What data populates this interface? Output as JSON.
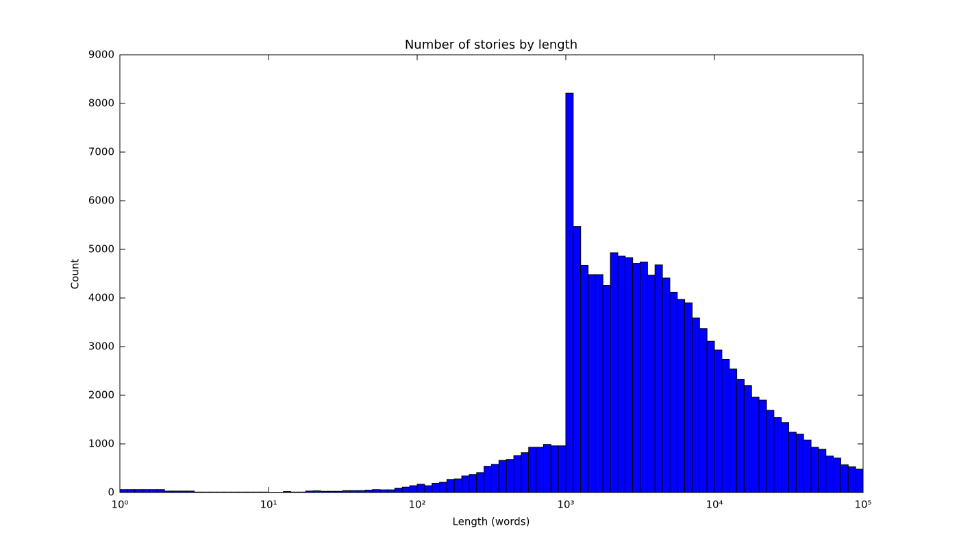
{
  "chart_data": {
    "type": "histogram",
    "title": "Number of stories by length",
    "xlabel": "Length (words)",
    "ylabel": "Count",
    "color": "#0000ff",
    "xscale": "log",
    "bins": [
      1,
      1.122,
      1.259,
      1.413,
      1.585,
      1.778,
      1.995,
      2.239,
      2.512,
      2.818,
      3.162,
      3.548,
      3.981,
      4.467,
      5.012,
      5.623,
      6.31,
      7.079,
      7.943,
      8.913,
      10,
      11.22,
      12.59,
      14.13,
      15.85,
      17.78,
      19.95,
      22.39,
      25.12,
      28.18,
      31.62,
      35.48,
      39.81,
      44.67,
      50.12,
      56.23,
      63.1,
      70.79,
      79.43,
      89.13,
      100,
      112.2,
      125.9,
      141.3,
      158.5,
      177.8,
      199.5,
      223.9,
      251.2,
      281.8,
      316.2,
      354.8,
      398.1,
      446.7,
      501.2,
      562.3,
      631,
      707.9,
      794.3,
      891.3,
      1000,
      1122,
      1259,
      1413,
      1585,
      1778,
      1995,
      2239,
      2512,
      2818,
      3162,
      3548,
      3981,
      4467,
      5012,
      5623,
      6310,
      7079,
      7943,
      8913,
      10000,
      11220,
      12590,
      14130,
      15850,
      17780,
      19950,
      22390,
      25120,
      28180,
      31620,
      35480,
      39810,
      44670,
      50120,
      56230,
      63100,
      70790,
      79430,
      89130,
      100000
    ],
    "values": [
      60,
      60,
      60,
      60,
      60,
      60,
      30,
      30,
      30,
      30,
      10,
      10,
      10,
      10,
      10,
      10,
      10,
      10,
      10,
      10,
      5,
      5,
      20,
      10,
      10,
      30,
      35,
      25,
      25,
      25,
      40,
      40,
      40,
      50,
      60,
      55,
      55,
      90,
      110,
      140,
      170,
      140,
      190,
      210,
      270,
      280,
      340,
      370,
      410,
      540,
      580,
      660,
      680,
      760,
      820,
      930,
      930,
      990,
      960,
      960,
      8210,
      5470,
      4670,
      4480,
      4480,
      4260,
      4930,
      4860,
      4830,
      4710,
      4740,
      4470,
      4680,
      4410,
      4120,
      3970,
      3900,
      3590,
      3370,
      3110,
      2930,
      2740,
      2540,
      2330,
      2200,
      1960,
      1900,
      1690,
      1540,
      1440,
      1240,
      1200,
      1080,
      930,
      890,
      750,
      710,
      570,
      530,
      480
    ],
    "xlim": [
      1,
      100000
    ],
    "xticks": [
      {
        "value": 1,
        "label": "10⁰"
      },
      {
        "value": 10,
        "label": "10¹"
      },
      {
        "value": 100,
        "label": "10²"
      },
      {
        "value": 1000,
        "label": "10³"
      },
      {
        "value": 10000,
        "label": "10⁴"
      },
      {
        "value": 100000,
        "label": "10⁵"
      }
    ],
    "ylim": [
      0,
      9000
    ],
    "yticks": [
      0,
      1000,
      2000,
      3000,
      4000,
      5000,
      6000,
      7000,
      8000,
      9000
    ]
  }
}
